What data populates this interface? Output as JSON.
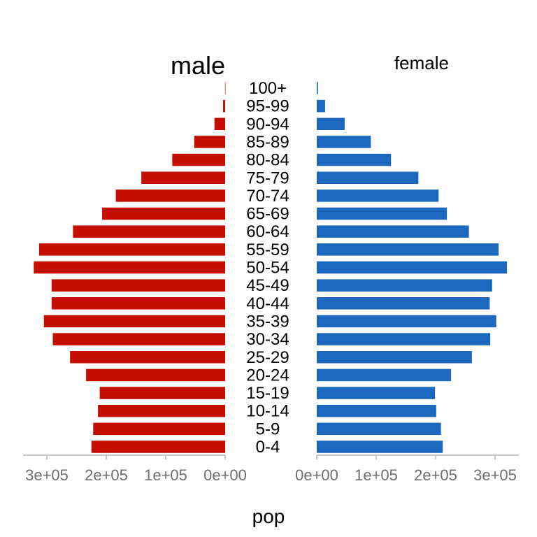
{
  "chart_data": {
    "type": "bar",
    "orientation": "horizontal",
    "layout": "population-pyramid",
    "categories": [
      "0-4",
      "5-9",
      "10-14",
      "15-19",
      "20-24",
      "25-29",
      "30-34",
      "35-39",
      "40-44",
      "45-49",
      "50-54",
      "55-59",
      "60-64",
      "65-69",
      "70-74",
      "75-79",
      "80-84",
      "85-89",
      "90-94",
      "95-99",
      "100+"
    ],
    "series": [
      {
        "name": "male",
        "color": "#C40E00",
        "values": [
          225000,
          222000,
          214000,
          211000,
          234000,
          261000,
          290000,
          305000,
          292000,
          292000,
          322000,
          313000,
          256000,
          207000,
          184000,
          141000,
          89000,
          52000,
          18000,
          3500,
          200
        ]
      },
      {
        "name": "female",
        "color": "#1B68BE",
        "values": [
          212000,
          209000,
          201000,
          199000,
          226000,
          261000,
          292000,
          302000,
          291000,
          295000,
          320000,
          306000,
          256000,
          219000,
          205000,
          171000,
          125000,
          91000,
          47000,
          14000,
          2000
        ]
      }
    ],
    "xlabel": "pop",
    "male_axis": {
      "lim": [
        0,
        340000
      ],
      "ticks": [
        300000,
        200000,
        100000,
        0
      ],
      "tick_labels": [
        "3e+05",
        "2e+05",
        "1e+05",
        "0e+00"
      ]
    },
    "female_axis": {
      "lim": [
        0,
        340000
      ],
      "ticks": [
        0,
        100000,
        200000,
        300000
      ],
      "tick_labels": [
        "0e+00",
        "1e+05",
        "2e+05",
        "3e+05"
      ]
    },
    "grid": false,
    "legend": "none"
  }
}
